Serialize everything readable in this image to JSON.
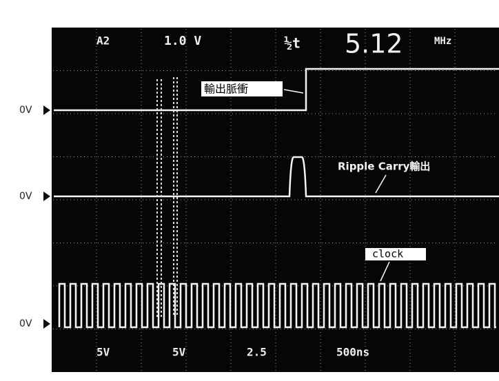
{
  "header": {
    "channel": "A2",
    "volts_div": "1.0 V",
    "trigger": "½t",
    "frequency": "5.12",
    "frequency_unit": "MHz"
  },
  "footer": {
    "ch1_scale": "5V",
    "ch2_scale": "5V",
    "ch3_scale": "2.5",
    "timebase": "500ns"
  },
  "markers": [
    "0V",
    "0V",
    "0V"
  ],
  "annotations": {
    "output_pulse": "輸出脈衝",
    "ripple_carry": "Ripple Carry輸出",
    "clock": "clock"
  }
}
